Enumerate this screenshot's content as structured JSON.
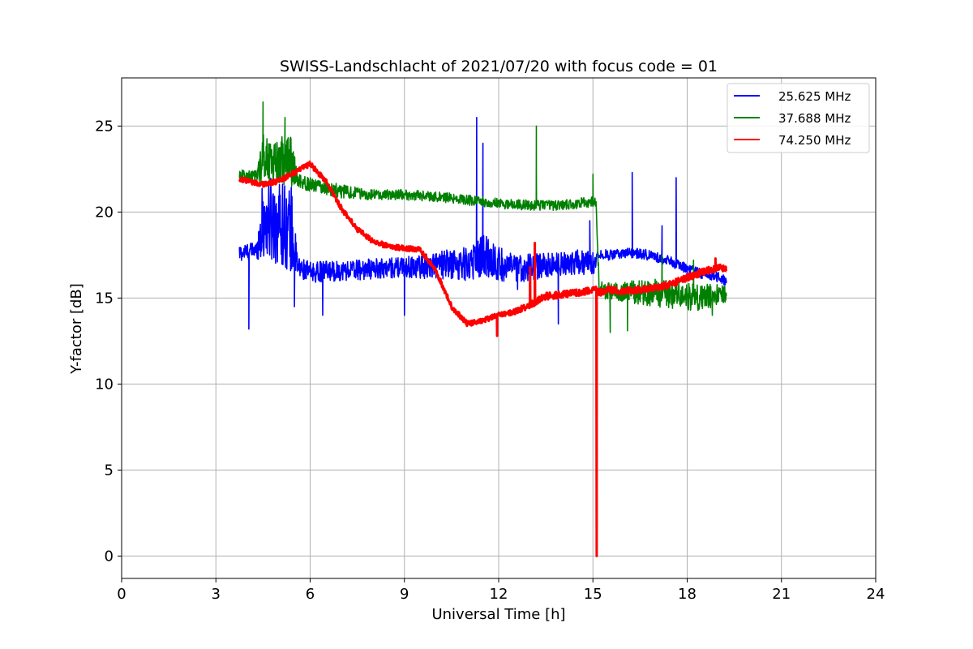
{
  "chart_data": {
    "type": "line",
    "title": "SWISS-Landschlacht of 2021/07/20 with focus code = 01",
    "xlabel": "Universal Time [h]",
    "ylabel": "Y-factor [dB]",
    "xlim": [
      0,
      24
    ],
    "ylim": [
      -1.3,
      27.8
    ],
    "xticks": [
      0,
      3,
      6,
      9,
      12,
      15,
      18,
      21,
      24
    ],
    "yticks": [
      0,
      5,
      10,
      15,
      20,
      25
    ],
    "xtick_labels": [
      "0",
      "3",
      "6",
      "9",
      "12",
      "15",
      "18",
      "21",
      "24"
    ],
    "ytick_labels": [
      "0",
      "5",
      "10",
      "15",
      "20",
      "25"
    ],
    "grid": true,
    "legend_position": "top-right",
    "series": [
      {
        "name": "25.625 MHz",
        "color": "#0000ff",
        "x": [
          3.75,
          4.0,
          4.3,
          4.5,
          5.0,
          5.4,
          5.6,
          6.0,
          7.0,
          8.0,
          9.0,
          10.0,
          11.0,
          11.5,
          12.0,
          12.5,
          13.0,
          13.5,
          14.0,
          14.5,
          15.0,
          15.2,
          15.5,
          16.0,
          16.5,
          17.0,
          17.5,
          18.0,
          18.5,
          19.0,
          19.25
        ],
        "y": [
          17.6,
          17.7,
          17.8,
          19.5,
          19.5,
          19.0,
          16.8,
          16.5,
          16.6,
          16.7,
          16.8,
          16.9,
          17.0,
          17.5,
          17.0,
          16.7,
          16.8,
          16.9,
          17.0,
          17.1,
          17.0,
          17.6,
          17.5,
          17.6,
          17.6,
          17.4,
          17.1,
          16.7,
          16.4,
          16.2,
          16.0
        ],
        "noise": [
          0.5,
          0.5,
          0.5,
          2.5,
          2.5,
          2.5,
          0.6,
          0.6,
          0.6,
          0.6,
          0.6,
          0.8,
          1.0,
          1.3,
          1.0,
          0.8,
          0.8,
          0.7,
          0.7,
          0.7,
          0.7,
          0.3,
          0.3,
          0.3,
          0.3,
          0.3,
          0.3,
          0.3,
          0.3,
          0.3,
          0.3
        ],
        "spikes": [
          [
            4.05,
            13.2
          ],
          [
            5.5,
            14.5
          ],
          [
            6.4,
            14.0
          ],
          [
            9.0,
            14.0
          ],
          [
            11.3,
            25.5
          ],
          [
            11.5,
            24.0
          ],
          [
            12.6,
            15.5
          ],
          [
            13.9,
            13.5
          ],
          [
            16.25,
            22.3
          ],
          [
            17.65,
            22.0
          ],
          [
            17.2,
            19.2
          ],
          [
            14.9,
            19.5
          ]
        ]
      },
      {
        "name": "37.688 MHz",
        "color": "#008000",
        "x": [
          3.75,
          4.0,
          4.3,
          4.5,
          5.0,
          5.4,
          5.6,
          6.0,
          6.5,
          7.0,
          8.0,
          9.0,
          10.0,
          11.0,
          12.0,
          13.0,
          14.0,
          14.5,
          15.0,
          15.1,
          15.2,
          15.5,
          16.0,
          16.5,
          17.0,
          17.5,
          18.0,
          18.5,
          19.0,
          19.25
        ],
        "y": [
          22.2,
          22.1,
          22.1,
          23.2,
          23.0,
          23.0,
          21.8,
          21.6,
          21.4,
          21.2,
          21.0,
          21.0,
          20.9,
          20.7,
          20.5,
          20.4,
          20.4,
          20.5,
          20.6,
          20.6,
          15.5,
          15.4,
          15.4,
          15.3,
          15.3,
          15.2,
          15.1,
          15.0,
          15.2,
          15.3
        ],
        "noise": [
          0.3,
          0.3,
          0.3,
          1.5,
          1.5,
          1.5,
          0.4,
          0.4,
          0.4,
          0.4,
          0.3,
          0.3,
          0.3,
          0.3,
          0.3,
          0.3,
          0.3,
          0.3,
          0.3,
          0.3,
          0.5,
          0.5,
          0.6,
          0.7,
          0.8,
          0.8,
          0.8,
          0.8,
          0.6,
          0.5
        ],
        "spikes": [
          [
            4.5,
            26.4
          ],
          [
            5.2,
            25.5
          ],
          [
            13.2,
            25.0
          ],
          [
            13.2,
            22.4
          ],
          [
            15.0,
            22.2
          ],
          [
            12.9,
            20.5
          ],
          [
            15.55,
            13.0
          ],
          [
            16.1,
            13.1
          ],
          [
            17.2,
            17.5
          ],
          [
            18.2,
            17.2
          ],
          [
            18.8,
            14.0
          ]
        ]
      },
      {
        "name": "74.250 MHz",
        "color": "#ff0000",
        "x": [
          3.75,
          4.0,
          4.5,
          5.0,
          5.5,
          6.0,
          6.5,
          7.0,
          7.5,
          8.0,
          8.5,
          9.0,
          9.5,
          10.0,
          10.5,
          11.0,
          11.5,
          12.0,
          12.5,
          13.0,
          13.5,
          14.0,
          14.5,
          15.0,
          15.1,
          15.2,
          15.5,
          16.0,
          16.5,
          17.0,
          17.5,
          18.0,
          18.5,
          19.0,
          19.25
        ],
        "y": [
          21.9,
          21.8,
          21.6,
          21.8,
          22.3,
          22.8,
          21.8,
          20.2,
          19.0,
          18.3,
          18.0,
          17.9,
          17.8,
          16.6,
          14.5,
          13.5,
          13.7,
          14.0,
          14.2,
          14.6,
          15.1,
          15.2,
          15.3,
          15.5,
          15.5,
          15.3,
          15.5,
          15.4,
          15.5,
          15.6,
          15.8,
          16.2,
          16.5,
          16.8,
          16.7
        ],
        "noise": [
          0.15,
          0.15,
          0.15,
          0.15,
          0.15,
          0.15,
          0.15,
          0.15,
          0.15,
          0.15,
          0.15,
          0.15,
          0.15,
          0.15,
          0.15,
          0.15,
          0.15,
          0.15,
          0.15,
          0.2,
          0.2,
          0.2,
          0.2,
          0.2,
          0.2,
          0.2,
          0.2,
          0.2,
          0.2,
          0.2,
          0.2,
          0.2,
          0.2,
          0.2,
          0.2
        ],
        "spikes": [
          [
            15.12,
            0.0
          ],
          [
            11.95,
            12.8
          ],
          [
            13.15,
            18.2
          ],
          [
            13.0,
            16.8
          ],
          [
            18.9,
            17.3
          ]
        ]
      }
    ]
  }
}
